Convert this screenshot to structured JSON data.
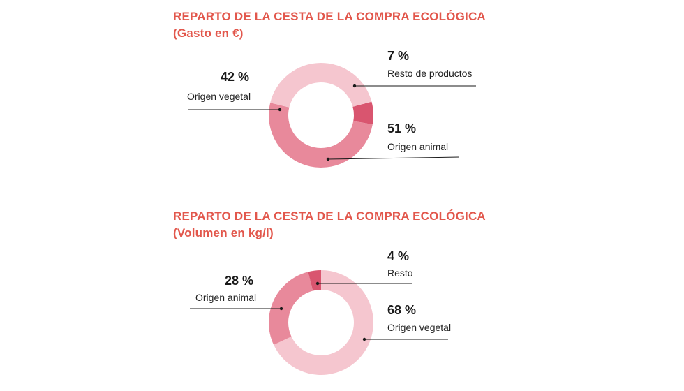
{
  "colors": {
    "title": "#e2574c",
    "light": "#f5c6cf",
    "medium": "#e8899b",
    "dark": "#d9556f",
    "leader": "#1a1a1a"
  },
  "chart_data": [
    {
      "type": "pie",
      "title": "REPARTO DE LA CESTA DE LA COMPRA ECOLÓGICA",
      "subtitle": "(Gasto en €)",
      "slices": [
        {
          "label": "Resto de productos",
          "value": 7,
          "pct_label": "7 %",
          "color": "#d9556f"
        },
        {
          "label": "Origen animal",
          "value": 51,
          "pct_label": "51 %",
          "color": "#e8899b"
        },
        {
          "label": "Origen vegetal",
          "value": 42,
          "pct_label": "42 %",
          "color": "#f5c6cf"
        }
      ]
    },
    {
      "type": "pie",
      "title": "REPARTO DE LA CESTA DE LA COMPRA ECOLÓGICA",
      "subtitle": "(Volumen en kg/l)",
      "slices": [
        {
          "label": "Origen vegetal",
          "value": 68,
          "pct_label": "68 %",
          "color": "#f5c6cf"
        },
        {
          "label": "Origen animal",
          "value": 28,
          "pct_label": "28 %",
          "color": "#e8899b"
        },
        {
          "label": "Resto",
          "value": 4,
          "pct_label": "4 %",
          "color": "#d9556f"
        }
      ]
    }
  ]
}
